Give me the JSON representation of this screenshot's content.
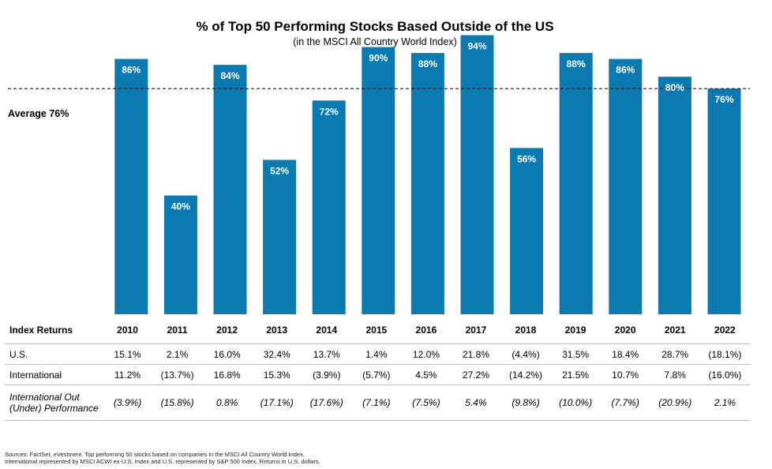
{
  "chart_data": {
    "type": "bar",
    "title": "% of Top 50 Performing Stocks Based Outside of the US",
    "subtitle": "(in the MSCI All Country World Index)",
    "categories": [
      "2010",
      "2011",
      "2012",
      "2013",
      "2014",
      "2015",
      "2016",
      "2017",
      "2018",
      "2019",
      "2020",
      "2021",
      "2022"
    ],
    "values": [
      86,
      40,
      84,
      52,
      72,
      90,
      88,
      94,
      56,
      88,
      86,
      80,
      76
    ],
    "data_labels": [
      "86%",
      "40%",
      "84%",
      "52%",
      "72%",
      "90%",
      "88%",
      "94%",
      "56%",
      "88%",
      "86%",
      "80%",
      "76%"
    ],
    "ylim": [
      0,
      100
    ],
    "bar_color": "#0a7ab1",
    "reference_line": {
      "label": "Average 76%",
      "value": 76
    }
  },
  "table": {
    "header_label": "Index Returns",
    "years": [
      "2010",
      "2011",
      "2012",
      "2013",
      "2014",
      "2015",
      "2016",
      "2017",
      "2018",
      "2019",
      "2020",
      "2021",
      "2022"
    ],
    "rows": [
      {
        "label": "U.S.",
        "italic": false,
        "values": [
          "15.1%",
          "2.1%",
          "16.0%",
          "32.4%",
          "13.7%",
          "1.4%",
          "12.0%",
          "21.8%",
          "(4.4%)",
          "31.5%",
          "18.4%",
          "28.7%",
          "(18.1%)"
        ]
      },
      {
        "label": "International",
        "italic": false,
        "values": [
          "11.2%",
          "(13.7%)",
          "16.8%",
          "15.3%",
          "(3.9%)",
          "(5.7%)",
          "4.5%",
          "27.2%",
          "(14.2%)",
          "21.5%",
          "10.7%",
          "7.8%",
          "(16.0%)"
        ]
      },
      {
        "label_line1": "International Out",
        "label_line2": "(Under) Performance",
        "italic": true,
        "values": [
          "(3.9%)",
          "(15.8%)",
          "0.8%",
          "(17.1%)",
          "(17.6%)",
          "(7.1%)",
          "(7.5%)",
          "5.4%",
          "(9.8%)",
          "(10.0%)",
          "(7.7%)",
          "(20.9%)",
          "2.1%"
        ]
      }
    ]
  },
  "sources": {
    "line1": "Sources: FactSet, eVestment. Top performing 50 stocks based on companies in the MSCI All Country World Index.",
    "line2": "International represented by MSCI ACWI ex-U.S. Index and U.S. represented by S&P 500 Index. Returns in U.S. dollars."
  }
}
